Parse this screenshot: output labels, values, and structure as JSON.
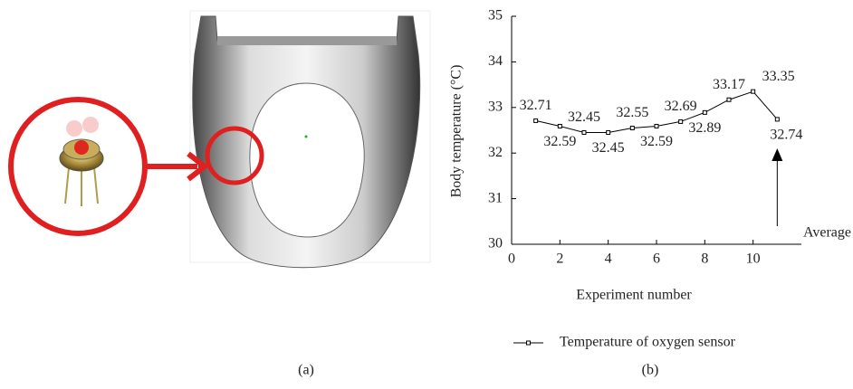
{
  "panel_labels": [
    "(a)",
    "(b)"
  ],
  "chart_data": {
    "type": "line",
    "x_label": "Experiment number",
    "y_label": "Body temperature (°C)",
    "x": [
      1,
      2,
      3,
      4,
      5,
      6,
      7,
      8,
      9,
      10,
      11
    ],
    "series": [
      {
        "name": "Temperature of oxygen sensor",
        "color": "#000000",
        "values": [
          32.71,
          32.59,
          32.45,
          32.45,
          32.55,
          32.59,
          32.69,
          32.89,
          33.17,
          33.35,
          32.74
        ]
      }
    ],
    "xlim": [
      0,
      12
    ],
    "xticks": [
      0,
      2,
      4,
      6,
      8,
      10
    ],
    "ylim": [
      30,
      35
    ],
    "yticks": [
      30,
      31,
      32,
      33,
      34,
      35
    ],
    "annotation": "Average",
    "legend": "bottom"
  }
}
